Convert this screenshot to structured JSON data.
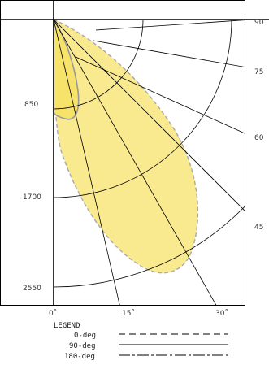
{
  "chart_data": {
    "type": "polar",
    "title": "",
    "radial_axis": {
      "ticks": [
        "850",
        "1700",
        "2550"
      ],
      "range": [
        0,
        2550
      ]
    },
    "angle_axis_bottom": {
      "ticks": [
        "0˚",
        "15˚",
        "30˚"
      ]
    },
    "angle_axis_right": {
      "ticks": [
        "90",
        "75",
        "60",
        "45"
      ]
    },
    "legend": {
      "title": "LEGEND",
      "items": [
        {
          "label": "0-deg",
          "style": "dashed"
        },
        {
          "label": "90-deg",
          "style": "solid"
        },
        {
          "label": "180-deg",
          "style": "dash-dot"
        }
      ]
    },
    "colors": {
      "fill": "#f9e98f",
      "dashed_outline": "#a9a9a9",
      "inner_outline": "#999999",
      "grid": "#000000"
    }
  }
}
